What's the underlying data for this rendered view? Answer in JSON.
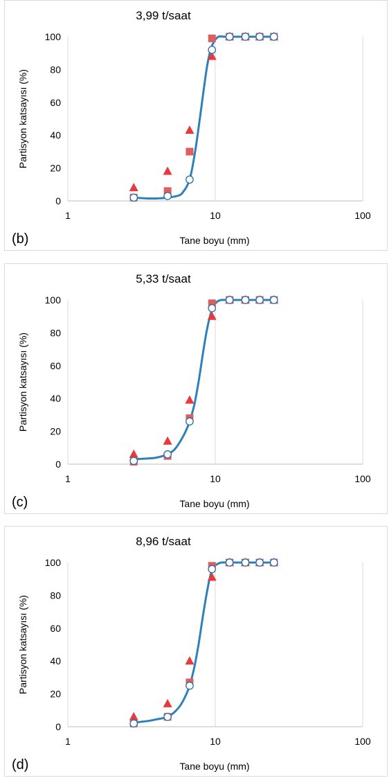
{
  "chart_data": [
    {
      "type": "scatter",
      "panel_label": "(b)",
      "title": "3,99 t/saat",
      "xlabel": "Tane boyu (mm)",
      "ylabel": "Partisyon katsayısı (%)",
      "xscale": "log",
      "xlim": [
        1,
        100
      ],
      "ylim": [
        0,
        100
      ],
      "x_ticks": [
        1,
        10,
        100
      ],
      "y_ticks": [
        0,
        20,
        40,
        60,
        80,
        100
      ],
      "grid": "vertical",
      "series": [
        {
          "marker": "circle",
          "color": "#2e6aa8",
          "x": [
            2.8,
            4.75,
            6.7,
            9.5,
            12.5,
            16,
            20,
            25
          ],
          "values": [
            2,
            3,
            13,
            92,
            100,
            100,
            100,
            100
          ]
        },
        {
          "marker": "square",
          "color": "#dd5f5f",
          "x": [
            2.8,
            4.75,
            6.7,
            9.5,
            12.5,
            16,
            20,
            25
          ],
          "values": [
            2,
            6,
            30,
            99,
            100,
            100,
            100,
            100
          ]
        },
        {
          "marker": "triangle",
          "color": "#e8393c",
          "x": [
            2.8,
            4.75,
            6.7,
            9.5,
            12.5,
            16,
            20,
            25
          ],
          "values": [
            8,
            18,
            43,
            88,
            100,
            100,
            100,
            100
          ]
        }
      ],
      "fit_curve": {
        "color": "#2e7fba",
        "x": [
          2.8,
          3.5,
          4.0,
          4.75,
          5.5,
          6.0,
          6.7,
          7.3,
          7.8,
          8.3,
          8.8,
          9.3,
          9.8,
          10.5,
          11.5,
          12.5,
          16,
          20,
          25
        ],
        "values": [
          2,
          1.5,
          1.5,
          2,
          3,
          5,
          13,
          30,
          48,
          66,
          82,
          92,
          97,
          100,
          100,
          100,
          100,
          100,
          100
        ]
      }
    },
    {
      "type": "scatter",
      "panel_label": "(c)",
      "title": "5,33 t/saat",
      "xlabel": "Tane boyu (mm)",
      "ylabel": "Partisyon katsayısı (%)",
      "xscale": "log",
      "xlim": [
        1,
        100
      ],
      "ylim": [
        0,
        100
      ],
      "x_ticks": [
        1,
        10,
        100
      ],
      "y_ticks": [
        0,
        20,
        40,
        60,
        80,
        100
      ],
      "grid": "vertical",
      "series": [
        {
          "marker": "circle",
          "color": "#2e6aa8",
          "x": [
            2.8,
            4.75,
            6.7,
            9.5,
            12.5,
            16,
            20,
            25
          ],
          "values": [
            2,
            6,
            26,
            95,
            100,
            100,
            100,
            100
          ]
        },
        {
          "marker": "square",
          "color": "#dd5f5f",
          "x": [
            2.8,
            4.75,
            6.7,
            9.5,
            12.5,
            16,
            20,
            25
          ],
          "values": [
            1.5,
            5,
            28,
            98,
            100,
            100,
            100,
            100
          ]
        },
        {
          "marker": "triangle",
          "color": "#e8393c",
          "x": [
            2.8,
            4.75,
            6.7,
            9.5,
            12.5,
            16,
            20,
            25
          ],
          "values": [
            6,
            14,
            39,
            90,
            100,
            100,
            100,
            100
          ]
        }
      ],
      "fit_curve": {
        "color": "#2e7fba",
        "x": [
          2.8,
          3.5,
          4.0,
          4.75,
          5.3,
          5.8,
          6.3,
          6.7,
          7.2,
          7.7,
          8.2,
          8.7,
          9.2,
          9.7,
          10.3,
          11,
          12.5,
          16,
          20,
          25
        ],
        "values": [
          3,
          3.5,
          4,
          6,
          9,
          14,
          20,
          26,
          36,
          50,
          66,
          80,
          90,
          96,
          99,
          100,
          100,
          100,
          100,
          100
        ]
      }
    },
    {
      "type": "scatter",
      "panel_label": "(d)",
      "title": "8,96 t/saat",
      "xlabel": "Tane boyu (mm)",
      "ylabel": "Partisyon katsayısı (%)",
      "xscale": "log",
      "xlim": [
        1,
        100
      ],
      "ylim": [
        0,
        100
      ],
      "x_ticks": [
        1,
        10,
        100
      ],
      "y_ticks": [
        0,
        20,
        40,
        60,
        80,
        100
      ],
      "grid": "vertical",
      "series": [
        {
          "marker": "circle",
          "color": "#2e6aa8",
          "x": [
            2.8,
            4.75,
            6.7,
            9.5,
            12.5,
            16,
            20,
            25
          ],
          "values": [
            2,
            6,
            25,
            96,
            100,
            100,
            100,
            100
          ]
        },
        {
          "marker": "square",
          "color": "#dd5f5f",
          "x": [
            2.8,
            4.75,
            6.7,
            9.5,
            12.5,
            16,
            20,
            25
          ],
          "values": [
            2,
            6,
            27,
            98,
            100,
            100,
            100,
            100
          ]
        },
        {
          "marker": "triangle",
          "color": "#e8393c",
          "x": [
            2.8,
            4.75,
            6.7,
            9.5,
            12.5,
            16,
            20,
            25
          ],
          "values": [
            6,
            14,
            40,
            91,
            100,
            100,
            100,
            100
          ]
        }
      ],
      "fit_curve": {
        "color": "#2e7fba",
        "x": [
          2.8,
          3.5,
          4.0,
          4.75,
          5.3,
          5.8,
          6.3,
          6.7,
          7.2,
          7.7,
          8.2,
          8.7,
          9.2,
          9.7,
          10.3,
          11,
          12.5,
          16,
          20,
          25
        ],
        "values": [
          2.5,
          3.5,
          4.5,
          6,
          9,
          13,
          19,
          25,
          36,
          50,
          66,
          80,
          91,
          97,
          99,
          100,
          100,
          100,
          100,
          100
        ]
      }
    }
  ]
}
